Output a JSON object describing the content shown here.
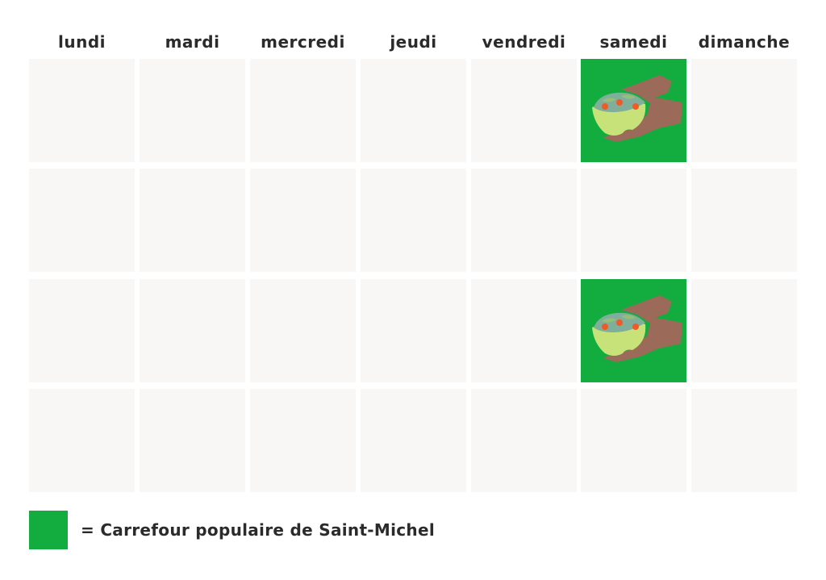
{
  "days": [
    "lundi",
    "mardi",
    "mercredi",
    "jeudi",
    "vendredi",
    "samedi",
    "dimanche"
  ],
  "weeks": [
    [
      false,
      false,
      false,
      false,
      false,
      true,
      false
    ],
    [
      false,
      false,
      false,
      false,
      false,
      false,
      false
    ],
    [
      false,
      false,
      false,
      false,
      false,
      true,
      false
    ],
    [
      false,
      false,
      false,
      false,
      false,
      false,
      false
    ]
  ],
  "event_icon": "hands-holding-salad-bowl-icon",
  "legend": {
    "text": "= Carrefour populaire de Saint-Michel"
  },
  "colors": {
    "event": "#12ad3e",
    "empty_cell": "#f8f7f6",
    "text": "#2b2b2b"
  }
}
